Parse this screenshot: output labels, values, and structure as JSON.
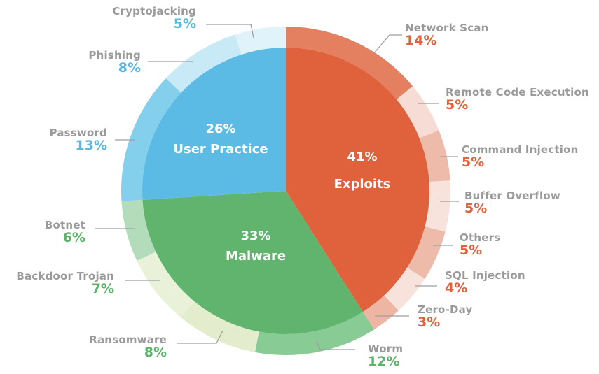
{
  "chart_data": {
    "type": "pie",
    "title": "",
    "subtype": "nested donut (sunburst)",
    "inner": [
      {
        "label": "Exploits",
        "value": 41,
        "color": "#e0623d"
      },
      {
        "label": "Malware",
        "value": 33,
        "color": "#61b46d"
      },
      {
        "label": "User Practice",
        "value": 26,
        "color": "#5bbbe4"
      }
    ],
    "outer": [
      {
        "label": "Network Scan",
        "value": 14,
        "parent": "Exploits",
        "color": "#e47f60"
      },
      {
        "label": "Remote Code Execution",
        "value": 5,
        "parent": "Exploits",
        "color": "#f6dcd4"
      },
      {
        "label": "Command Injection",
        "value": 5,
        "parent": "Exploits",
        "color": "#eebbaa"
      },
      {
        "label": "Buffer Overflow",
        "value": 5,
        "parent": "Exploits",
        "color": "#f8e3dc"
      },
      {
        "label": "Others",
        "value": 5,
        "parent": "Exploits",
        "color": "#eebbaa"
      },
      {
        "label": "SQL Injection",
        "value": 4,
        "parent": "Exploits",
        "color": "#f8e3dc"
      },
      {
        "label": "Zero-Day",
        "value": 3,
        "parent": "Exploits",
        "color": "#eeb5a3"
      },
      {
        "label": "Worm",
        "value": 12,
        "parent": "Malware",
        "color": "#89cb94"
      },
      {
        "label": "Ransomware",
        "value": 8,
        "parent": "Malware",
        "color": "#e3edcd"
      },
      {
        "label": "Backdoor Trojan",
        "value": 7,
        "parent": "Malware",
        "color": "#e9f1d8"
      },
      {
        "label": "Botnet",
        "value": 6,
        "parent": "Malware",
        "color": "#b3dcbb"
      },
      {
        "label": "Password",
        "value": 13,
        "parent": "User Practice",
        "color": "#84cfec"
      },
      {
        "label": "Phishing",
        "value": 8,
        "parent": "User Practice",
        "color": "#c8e9f6"
      },
      {
        "label": "Cryptojacking",
        "value": 5,
        "parent": "User Practice",
        "color": "#e1f3fa"
      }
    ]
  },
  "colors": {
    "exploits_text": "#e0623d",
    "malware_text": "#5db36a",
    "user_practice_text": "#57b9e2",
    "label_gray": "#9a9a9a",
    "leader_line": "#9e9e9e"
  },
  "labels": {
    "exploits": {
      "pct": "41%",
      "name": "Exploits"
    },
    "malware": {
      "pct": "33%",
      "name": "Malware"
    },
    "user_practice": {
      "pct": "26%",
      "name": "User Practice"
    },
    "network_scan": {
      "name": "Network Scan",
      "pct": "14%"
    },
    "rce": {
      "name": "Remote Code Execution",
      "pct": "5%"
    },
    "command_injection": {
      "name": "Command Injection",
      "pct": "5%"
    },
    "buffer_overflow": {
      "name": "Buffer Overflow",
      "pct": "5%"
    },
    "others": {
      "name": "Others",
      "pct": "5%"
    },
    "sql_injection": {
      "name": "SQL Injection",
      "pct": "4%"
    },
    "zero_day": {
      "name": "Zero-Day",
      "pct": "3%"
    },
    "worm": {
      "name": "Worm",
      "pct": "12%"
    },
    "ransomware": {
      "name": "Ransomware",
      "pct": "8%"
    },
    "backdoor_trojan": {
      "name": "Backdoor Trojan",
      "pct": "7%"
    },
    "botnet": {
      "name": "Botnet",
      "pct": "6%"
    },
    "password": {
      "name": "Password",
      "pct": "13%"
    },
    "phishing": {
      "name": "Phishing",
      "pct": "8%"
    },
    "cryptojacking": {
      "name": "Cryptojacking",
      "pct": "5%"
    }
  }
}
